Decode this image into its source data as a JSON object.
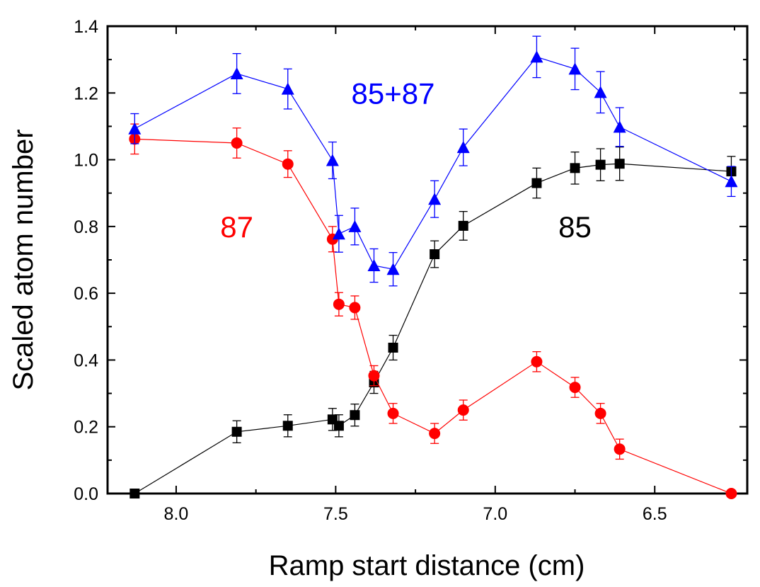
{
  "chart_data": {
    "type": "scatter",
    "title": "",
    "xlabel": "Ramp start distance (cm)",
    "ylabel": "Scaled atom number",
    "xlim": [
      8.215,
      6.21
    ],
    "ylim": [
      0.0,
      1.4
    ],
    "x_reversed": true,
    "x_ticks": [
      "8.0",
      "7.5",
      "7.0",
      "6.5"
    ],
    "x_tick_values": [
      8.0,
      7.5,
      7.0,
      6.5
    ],
    "y_ticks": [
      "0.0",
      "0.2",
      "0.4",
      "0.6",
      "0.8",
      "1.0",
      "1.2",
      "1.4"
    ],
    "y_tick_values": [
      0.0,
      0.2,
      0.4,
      0.6,
      0.8,
      1.0,
      1.2,
      1.4
    ],
    "grid": false,
    "series": [
      {
        "name": "85",
        "color": "#000000",
        "marker": "square",
        "x": [
          8.13,
          7.81,
          7.65,
          7.51,
          7.49,
          7.44,
          7.38,
          7.32,
          7.19,
          7.1,
          6.87,
          6.75,
          6.67,
          6.61,
          6.26
        ],
        "y": [
          0.0,
          0.185,
          0.203,
          0.222,
          0.203,
          0.235,
          0.333,
          0.437,
          0.717,
          0.802,
          0.93,
          0.975,
          0.985,
          0.988,
          0.965
        ],
        "err": [
          0.0,
          0.033,
          0.033,
          0.033,
          0.033,
          0.033,
          0.033,
          0.037,
          0.04,
          0.043,
          0.045,
          0.048,
          0.048,
          0.05,
          0.045
        ]
      },
      {
        "name": "87",
        "color": "#ff0000",
        "marker": "circle",
        "x": [
          8.13,
          7.81,
          7.65,
          7.51,
          7.49,
          7.44,
          7.38,
          7.32,
          7.19,
          7.1,
          6.87,
          6.75,
          6.67,
          6.61,
          6.26
        ],
        "y": [
          1.062,
          1.05,
          0.987,
          0.762,
          0.567,
          0.557,
          0.353,
          0.24,
          0.18,
          0.25,
          0.395,
          0.318,
          0.24,
          0.133,
          0.0
        ],
        "err": [
          0.045,
          0.045,
          0.04,
          0.038,
          0.035,
          0.035,
          0.03,
          0.03,
          0.03,
          0.03,
          0.03,
          0.03,
          0.03,
          0.03,
          0.0
        ]
      },
      {
        "name": "85+87",
        "color": "#0000ff",
        "marker": "triangle",
        "x": [
          8.13,
          7.81,
          7.65,
          7.51,
          7.49,
          7.44,
          7.38,
          7.32,
          7.19,
          7.1,
          6.87,
          6.75,
          6.67,
          6.61,
          6.26
        ],
        "y": [
          1.093,
          1.258,
          1.212,
          0.998,
          0.778,
          0.8,
          0.683,
          0.672,
          0.882,
          1.037,
          1.308,
          1.272,
          1.202,
          1.098,
          0.935
        ],
        "err": [
          0.045,
          0.06,
          0.06,
          0.055,
          0.055,
          0.055,
          0.05,
          0.05,
          0.055,
          0.055,
          0.062,
          0.062,
          0.062,
          0.058,
          0.045
        ]
      }
    ],
    "annotations": [
      {
        "text": "85+87",
        "color": "#0000ff",
        "x": 7.32,
        "y": 1.2
      },
      {
        "text": "87",
        "color": "#ff0000",
        "x": 7.81,
        "y": 0.8
      },
      {
        "text": "85",
        "color": "#000000",
        "x": 6.75,
        "y": 0.8
      }
    ]
  }
}
